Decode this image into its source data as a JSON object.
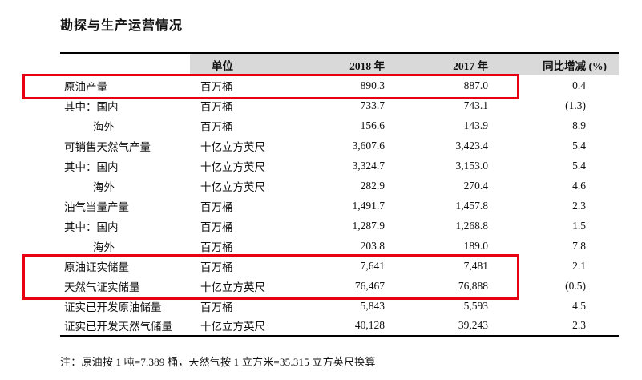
{
  "page": {
    "title": "勘探与生产运营情况",
    "note": "注：原油按 1 吨=7.389 桶，天然气按 1 立方米=35.315 立方英尺换算"
  },
  "style": {
    "header_bg": "#d9d9d9",
    "highlight_color": "#e60012"
  },
  "table": {
    "headers": {
      "label": "",
      "unit": "单位",
      "y2018": "2018 年",
      "y2017": "2017 年",
      "change": "同比增减 (%)"
    },
    "rows": [
      {
        "label": "原油产量",
        "unit": "百万桶",
        "y2018": "890.3",
        "y2017": "887.0",
        "change": "0.4",
        "indent": false,
        "highlight": true
      },
      {
        "label": "其中：国内",
        "unit": "百万桶",
        "y2018": "733.7",
        "y2017": "743.1",
        "change": "(1.3)",
        "indent": false,
        "highlight": false
      },
      {
        "label": "海外",
        "unit": "百万桶",
        "y2018": "156.6",
        "y2017": "143.9",
        "change": "8.9",
        "indent": true,
        "highlight": false
      },
      {
        "label": "可销售天然气产量",
        "unit": "十亿立方英尺",
        "y2018": "3,607.6",
        "y2017": "3,423.4",
        "change": "5.4",
        "indent": false,
        "highlight": false
      },
      {
        "label": "其中：国内",
        "unit": "十亿立方英尺",
        "y2018": "3,324.7",
        "y2017": "3,153.0",
        "change": "5.4",
        "indent": false,
        "highlight": false
      },
      {
        "label": "海外",
        "unit": "十亿立方英尺",
        "y2018": "282.9",
        "y2017": "270.4",
        "change": "4.6",
        "indent": true,
        "highlight": false
      },
      {
        "label": "油气当量产量",
        "unit": "百万桶",
        "y2018": "1,491.7",
        "y2017": "1,457.8",
        "change": "2.3",
        "indent": false,
        "highlight": false
      },
      {
        "label": "其中：国内",
        "unit": "百万桶",
        "y2018": "1,287.9",
        "y2017": "1,268.8",
        "change": "1.5",
        "indent": false,
        "highlight": false
      },
      {
        "label": "海外",
        "unit": "百万桶",
        "y2018": "203.8",
        "y2017": "189.0",
        "change": "7.8",
        "indent": true,
        "highlight": false
      },
      {
        "label": "原油证实储量",
        "unit": "百万桶",
        "y2018": "7,641",
        "y2017": "7,481",
        "change": "2.1",
        "indent": false,
        "highlight": true
      },
      {
        "label": "天然气证实储量",
        "unit": "十亿立方英尺",
        "y2018": "76,467",
        "y2017": "76,888",
        "change": "(0.5)",
        "indent": false,
        "highlight": true
      },
      {
        "label": "证实已开发原油储量",
        "unit": "百万桶",
        "y2018": "5,843",
        "y2017": "5,593",
        "change": "4.5",
        "indent": false,
        "highlight": false
      },
      {
        "label": "证实已开发天然气储量",
        "unit": "十亿立方英尺",
        "y2018": "40,128",
        "y2017": "39,243",
        "change": "2.3",
        "indent": false,
        "highlight": false
      }
    ]
  }
}
